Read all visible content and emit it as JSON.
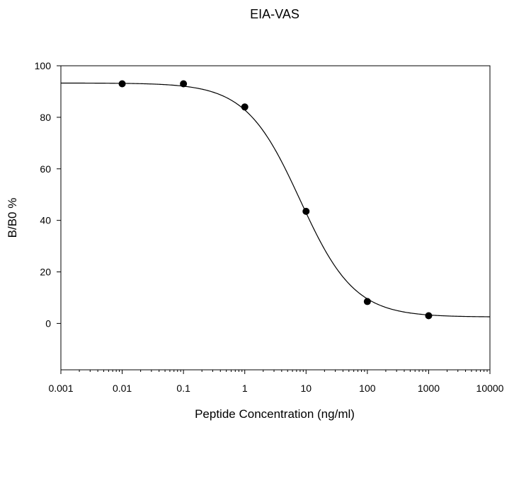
{
  "chart_data": {
    "type": "scatter",
    "title": "EIA-VAS",
    "xlabel": "Peptide Concentration (ng/ml)",
    "ylabel": "B/B0 %",
    "x_scale": "log",
    "xlim": [
      0.001,
      10000
    ],
    "ylim": [
      -18,
      100
    ],
    "x_ticks": [
      0.001,
      0.01,
      0.1,
      1,
      10,
      100,
      1000,
      10000
    ],
    "x_tick_labels": [
      "0.001",
      "0.01",
      "0.1",
      "1",
      "10",
      "100",
      "1000",
      "10000"
    ],
    "y_ticks": [
      0,
      20,
      40,
      60,
      80,
      100
    ],
    "y_tick_labels": [
      "0",
      "20",
      "40",
      "60",
      "80",
      "100"
    ],
    "grid": false,
    "legend": "none",
    "series": [
      {
        "kind": "points",
        "x": [
          0.01,
          0.1,
          1,
          10,
          100,
          1000
        ],
        "y": [
          93,
          93,
          84,
          43.5,
          8.5,
          3
        ]
      },
      {
        "kind": "fitted-curve",
        "model": "4PL",
        "top": 93.3,
        "bottom": 2.5,
        "ec50": 8,
        "hill": 0.98
      }
    ],
    "colors": {
      "points": "#000000",
      "curve": "#000000",
      "axes": "#000000"
    }
  }
}
